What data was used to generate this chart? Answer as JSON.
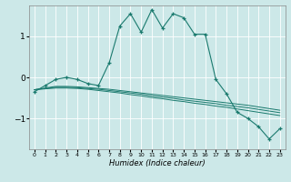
{
  "xlabel": "Humidex (Indice chaleur)",
  "ylabel": "",
  "bg_color": "#cce8e8",
  "grid_color": "#ffffff",
  "line_color": "#1a7a6e",
  "marker_color": "#1a7a6e",
  "xlim": [
    -0.5,
    23.5
  ],
  "ylim": [
    -1.75,
    1.75
  ],
  "yticks": [
    -1,
    0,
    1
  ],
  "xticks": [
    0,
    1,
    2,
    3,
    4,
    5,
    6,
    7,
    8,
    9,
    10,
    11,
    12,
    13,
    14,
    15,
    16,
    17,
    18,
    19,
    20,
    21,
    22,
    23
  ],
  "main_y": [
    -0.35,
    -0.2,
    -0.05,
    0.0,
    -0.05,
    -0.15,
    -0.2,
    0.35,
    1.25,
    1.55,
    1.1,
    1.65,
    1.2,
    1.55,
    1.45,
    1.05,
    1.05,
    -0.05,
    -0.4,
    -0.85,
    -1.0,
    -1.2,
    -1.5,
    -1.25
  ],
  "line2_y": [
    -0.3,
    -0.26,
    -0.22,
    -0.22,
    -0.23,
    -0.25,
    -0.27,
    -0.29,
    -0.32,
    -0.35,
    -0.38,
    -0.41,
    -0.44,
    -0.47,
    -0.5,
    -0.53,
    -0.56,
    -0.59,
    -0.62,
    -0.65,
    -0.68,
    -0.72,
    -0.76,
    -0.8
  ],
  "line3_y": [
    -0.3,
    -0.27,
    -0.24,
    -0.24,
    -0.25,
    -0.27,
    -0.29,
    -0.32,
    -0.35,
    -0.38,
    -0.41,
    -0.45,
    -0.48,
    -0.51,
    -0.55,
    -0.58,
    -0.61,
    -0.64,
    -0.68,
    -0.71,
    -0.74,
    -0.78,
    -0.82,
    -0.86
  ],
  "line4_y": [
    -0.3,
    -0.28,
    -0.26,
    -0.26,
    -0.27,
    -0.29,
    -0.32,
    -0.35,
    -0.38,
    -0.42,
    -0.45,
    -0.49,
    -0.52,
    -0.56,
    -0.59,
    -0.63,
    -0.66,
    -0.7,
    -0.73,
    -0.77,
    -0.81,
    -0.85,
    -0.89,
    -0.93
  ]
}
